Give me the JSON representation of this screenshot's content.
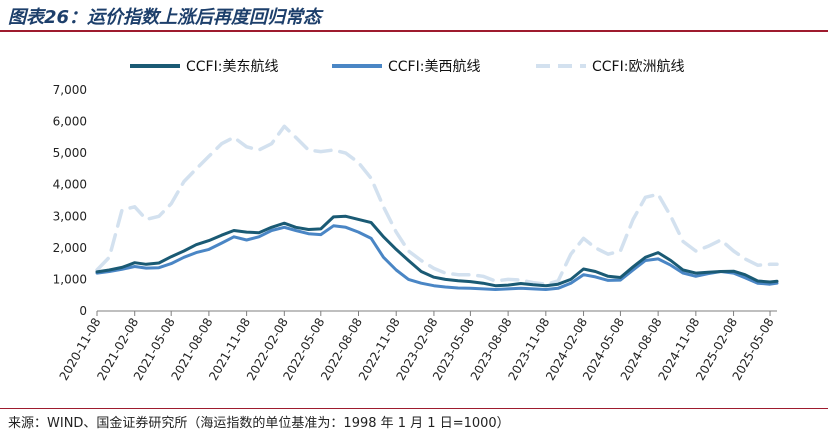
{
  "figure": {
    "title": "图表26：运价指数上涨后再度回归常态",
    "source": "来源：WIND、国金证券研究所（海运指数的单位基准为：1998 年 1 月 1 日=1000）"
  },
  "chart_data": {
    "type": "line",
    "title": "",
    "xlabel": "",
    "ylabel": "",
    "ylim": [
      0,
      7000
    ],
    "yticks": [
      0,
      1000,
      2000,
      3000,
      4000,
      5000,
      6000,
      7000
    ],
    "ytick_labels": [
      "0",
      "1,000",
      "2,000",
      "3,000",
      "4,000",
      "5,000",
      "6,000",
      "7,000"
    ],
    "xlim": [
      "2020-11-08",
      "2025-05-25"
    ],
    "xtick_labels": [
      "2020-11-08",
      "2021-02-08",
      "2021-05-08",
      "2021-08-08",
      "2021-11-08",
      "2022-02-08",
      "2022-05-08",
      "2022-08-08",
      "2022-11-08",
      "2023-02-08",
      "2023-05-08",
      "2023-08-08",
      "2023-11-08",
      "2024-02-08",
      "2024-05-08",
      "2024-08-08",
      "2024-11-08",
      "2025-02-08",
      "2025-05-08"
    ],
    "grid": false,
    "legend_position": "top",
    "series": [
      {
        "name": "CCFI:美东航线",
        "color": "#1a5a74",
        "style": "solid",
        "points": [
          [
            "2020-11-08",
            1240
          ],
          [
            "2020-12-08",
            1300
          ],
          [
            "2021-01-08",
            1380
          ],
          [
            "2021-02-08",
            1530
          ],
          [
            "2021-03-08",
            1480
          ],
          [
            "2021-04-08",
            1520
          ],
          [
            "2021-05-08",
            1720
          ],
          [
            "2021-06-08",
            1900
          ],
          [
            "2021-07-08",
            2100
          ],
          [
            "2021-08-08",
            2230
          ],
          [
            "2021-09-08",
            2400
          ],
          [
            "2021-10-08",
            2550
          ],
          [
            "2021-11-08",
            2500
          ],
          [
            "2021-12-08",
            2480
          ],
          [
            "2022-01-08",
            2650
          ],
          [
            "2022-02-08",
            2780
          ],
          [
            "2022-03-08",
            2650
          ],
          [
            "2022-04-08",
            2580
          ],
          [
            "2022-05-08",
            2600
          ],
          [
            "2022-06-08",
            2980
          ],
          [
            "2022-07-08",
            3000
          ],
          [
            "2022-08-08",
            2900
          ],
          [
            "2022-09-08",
            2800
          ],
          [
            "2022-10-08",
            2350
          ],
          [
            "2022-11-08",
            1950
          ],
          [
            "2022-12-08",
            1600
          ],
          [
            "2023-01-08",
            1250
          ],
          [
            "2023-02-08",
            1070
          ],
          [
            "2023-03-08",
            1000
          ],
          [
            "2023-04-08",
            960
          ],
          [
            "2023-05-08",
            930
          ],
          [
            "2023-06-08",
            880
          ],
          [
            "2023-07-08",
            800
          ],
          [
            "2023-08-08",
            820
          ],
          [
            "2023-09-08",
            870
          ],
          [
            "2023-10-08",
            830
          ],
          [
            "2023-11-08",
            800
          ],
          [
            "2023-12-08",
            850
          ],
          [
            "2024-01-08",
            1000
          ],
          [
            "2024-02-08",
            1330
          ],
          [
            "2024-03-08",
            1250
          ],
          [
            "2024-04-08",
            1100
          ],
          [
            "2024-05-08",
            1060
          ],
          [
            "2024-06-08",
            1400
          ],
          [
            "2024-07-08",
            1700
          ],
          [
            "2024-08-08",
            1850
          ],
          [
            "2024-09-08",
            1600
          ],
          [
            "2024-10-08",
            1300
          ],
          [
            "2024-11-08",
            1200
          ],
          [
            "2024-12-08",
            1230
          ],
          [
            "2025-01-08",
            1250
          ],
          [
            "2025-02-08",
            1260
          ],
          [
            "2025-03-08",
            1150
          ],
          [
            "2025-04-08",
            950
          ],
          [
            "2025-05-08",
            920
          ],
          [
            "2025-05-25",
            940
          ]
        ]
      },
      {
        "name": "CCFI:美西航线",
        "color": "#4a86c5",
        "style": "solid",
        "points": [
          [
            "2020-11-08",
            1200
          ],
          [
            "2020-12-08",
            1250
          ],
          [
            "2021-01-08",
            1320
          ],
          [
            "2021-02-08",
            1410
          ],
          [
            "2021-03-08",
            1360
          ],
          [
            "2021-04-08",
            1370
          ],
          [
            "2021-05-08",
            1500
          ],
          [
            "2021-06-08",
            1700
          ],
          [
            "2021-07-08",
            1850
          ],
          [
            "2021-08-08",
            1950
          ],
          [
            "2021-09-08",
            2150
          ],
          [
            "2021-10-08",
            2350
          ],
          [
            "2021-11-08",
            2250
          ],
          [
            "2021-12-08",
            2350
          ],
          [
            "2022-01-08",
            2550
          ],
          [
            "2022-02-08",
            2650
          ],
          [
            "2022-03-08",
            2550
          ],
          [
            "2022-04-08",
            2450
          ],
          [
            "2022-05-08",
            2420
          ],
          [
            "2022-06-08",
            2700
          ],
          [
            "2022-07-08",
            2650
          ],
          [
            "2022-08-08",
            2500
          ],
          [
            "2022-09-08",
            2300
          ],
          [
            "2022-10-08",
            1700
          ],
          [
            "2022-11-08",
            1300
          ],
          [
            "2022-12-08",
            1000
          ],
          [
            "2023-01-08",
            880
          ],
          [
            "2023-02-08",
            800
          ],
          [
            "2023-03-08",
            760
          ],
          [
            "2023-04-08",
            730
          ],
          [
            "2023-05-08",
            720
          ],
          [
            "2023-06-08",
            700
          ],
          [
            "2023-07-08",
            680
          ],
          [
            "2023-08-08",
            700
          ],
          [
            "2023-09-08",
            720
          ],
          [
            "2023-10-08",
            700
          ],
          [
            "2023-11-08",
            680
          ],
          [
            "2023-12-08",
            720
          ],
          [
            "2024-01-08",
            880
          ],
          [
            "2024-02-08",
            1150
          ],
          [
            "2024-03-08",
            1080
          ],
          [
            "2024-04-08",
            970
          ],
          [
            "2024-05-08",
            980
          ],
          [
            "2024-06-08",
            1300
          ],
          [
            "2024-07-08",
            1600
          ],
          [
            "2024-08-08",
            1650
          ],
          [
            "2024-09-08",
            1450
          ],
          [
            "2024-10-08",
            1200
          ],
          [
            "2024-11-08",
            1100
          ],
          [
            "2024-12-08",
            1180
          ],
          [
            "2025-01-08",
            1250
          ],
          [
            "2025-02-08",
            1200
          ],
          [
            "2025-03-08",
            1050
          ],
          [
            "2025-04-08",
            880
          ],
          [
            "2025-05-08",
            850
          ],
          [
            "2025-05-25",
            880
          ]
        ]
      },
      {
        "name": "CCFI:欧洲航线",
        "color": "#d3e1ef",
        "style": "dashed",
        "points": [
          [
            "2020-11-08",
            1300
          ],
          [
            "2020-12-08",
            1700
          ],
          [
            "2021-01-08",
            3200
          ],
          [
            "2021-02-08",
            3300
          ],
          [
            "2021-03-08",
            2900
          ],
          [
            "2021-04-08",
            3000
          ],
          [
            "2021-05-08",
            3400
          ],
          [
            "2021-06-08",
            4100
          ],
          [
            "2021-07-08",
            4500
          ],
          [
            "2021-08-08",
            4900
          ],
          [
            "2021-09-08",
            5300
          ],
          [
            "2021-10-08",
            5500
          ],
          [
            "2021-11-08",
            5200
          ],
          [
            "2021-12-08",
            5100
          ],
          [
            "2022-01-08",
            5300
          ],
          [
            "2022-02-08",
            5850
          ],
          [
            "2022-03-08",
            5500
          ],
          [
            "2022-04-08",
            5100
          ],
          [
            "2022-05-08",
            5050
          ],
          [
            "2022-06-08",
            5100
          ],
          [
            "2022-07-08",
            5000
          ],
          [
            "2022-08-08",
            4700
          ],
          [
            "2022-09-08",
            4200
          ],
          [
            "2022-10-08",
            3300
          ],
          [
            "2022-11-08",
            2500
          ],
          [
            "2022-12-08",
            1900
          ],
          [
            "2023-01-08",
            1600
          ],
          [
            "2023-02-08",
            1350
          ],
          [
            "2023-03-08",
            1200
          ],
          [
            "2023-04-08",
            1150
          ],
          [
            "2023-05-08",
            1150
          ],
          [
            "2023-06-08",
            1100
          ],
          [
            "2023-07-08",
            950
          ],
          [
            "2023-08-08",
            1000
          ],
          [
            "2023-09-08",
            980
          ],
          [
            "2023-10-08",
            900
          ],
          [
            "2023-11-08",
            850
          ],
          [
            "2023-12-08",
            950
          ],
          [
            "2024-01-08",
            1800
          ],
          [
            "2024-02-08",
            2300
          ],
          [
            "2024-03-08",
            2000
          ],
          [
            "2024-04-08",
            1800
          ],
          [
            "2024-05-08",
            1900
          ],
          [
            "2024-06-08",
            2900
          ],
          [
            "2024-07-08",
            3600
          ],
          [
            "2024-08-08",
            3700
          ],
          [
            "2024-09-08",
            3000
          ],
          [
            "2024-10-08",
            2200
          ],
          [
            "2024-11-08",
            1900
          ],
          [
            "2024-12-08",
            2050
          ],
          [
            "2025-01-08",
            2250
          ],
          [
            "2025-02-08",
            1900
          ],
          [
            "2025-03-08",
            1650
          ],
          [
            "2025-04-08",
            1450
          ],
          [
            "2025-05-08",
            1480
          ],
          [
            "2025-05-25",
            1480
          ]
        ]
      }
    ]
  }
}
